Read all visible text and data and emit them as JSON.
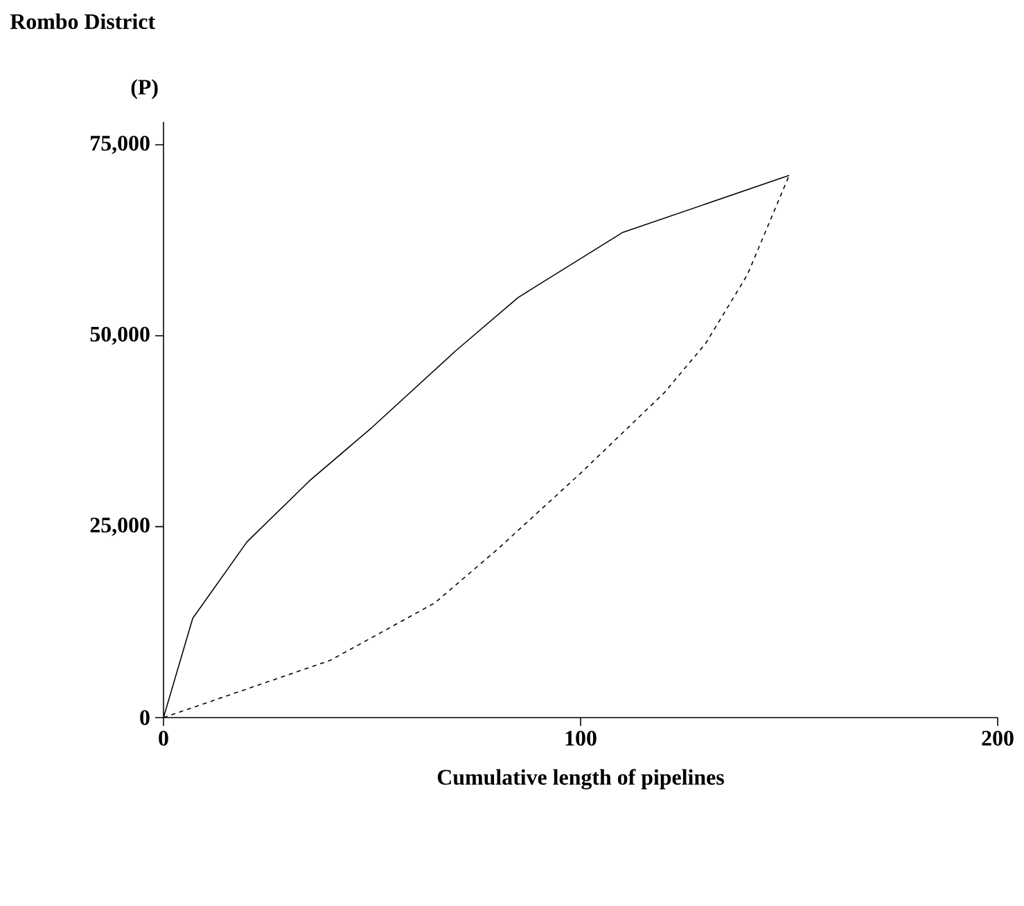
{
  "chart_data": {
    "type": "line",
    "title": "Rombo District",
    "ylabel": "(P)",
    "xlabel": "Cumulative length of pipelines",
    "xlim": [
      0,
      200
    ],
    "ylim": [
      0,
      78000
    ],
    "xticks": [
      0,
      100,
      200
    ],
    "yticks": [
      0,
      {
        "value": 25000,
        "label": "25,000"
      },
      {
        "value": 50000,
        "label": "50,000"
      },
      {
        "value": 75000,
        "label": "75,000"
      }
    ],
    "series": [
      {
        "color": "#000000",
        "line_style": "solid",
        "x": [
          0,
          7,
          20,
          35,
          50,
          70,
          85,
          110,
          150
        ],
        "values": [
          0,
          13000,
          23000,
          31000,
          38000,
          48000,
          55000,
          63500,
          71000
        ]
      },
      {
        "color": "#000000",
        "line_style": "dashed",
        "x": [
          0,
          40,
          65,
          80,
          100,
          120,
          130,
          140,
          150
        ],
        "values": [
          0,
          7500,
          15000,
          22000,
          32000,
          42500,
          49000,
          58000,
          71000
        ]
      }
    ]
  }
}
